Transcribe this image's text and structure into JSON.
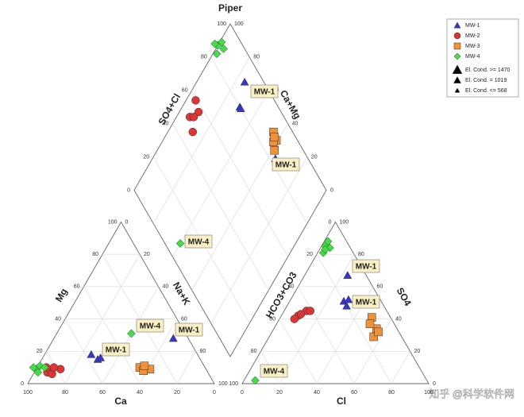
{
  "chart_data": {
    "type": "piper",
    "title": "Piper",
    "axes": {
      "cation": {
        "bottom": "Ca",
        "left": "Mg",
        "right": "Na+K"
      },
      "anion": {
        "bottom": "Cl",
        "left": "HCO3+CO3",
        "right": "SO4"
      },
      "diamond": {
        "left": "SO4+Cl",
        "right": "Ca+Mg"
      }
    },
    "ticks": [
      0,
      20,
      40,
      60,
      80,
      100
    ],
    "grid": true,
    "series": [
      {
        "name": "MW-1",
        "color": "#3636c8",
        "marker": "triangle",
        "cation": [
          [
            57,
            18
          ],
          [
            55,
            15
          ],
          [
            53,
            16
          ],
          [
            8,
            28
          ]
        ],
        "anion": [
          [
            23,
            67
          ],
          [
            29,
            51
          ],
          [
            32,
            48
          ],
          [
            31,
            52
          ]
        ]
      },
      {
        "name": "MW-2",
        "color": "#dc3535",
        "marker": "circle",
        "cation": [
          [
            86,
            7
          ],
          [
            84,
            6
          ],
          [
            78,
            9
          ],
          [
            81,
            10
          ],
          [
            85,
            10
          ]
        ],
        "anion": [
          [
            9,
            42
          ],
          [
            12,
            45
          ],
          [
            8,
            40
          ],
          [
            10,
            43
          ],
          [
            14,
            45
          ]
        ]
      },
      {
        "name": "MW-3",
        "color": "#f0913a",
        "marker": "square",
        "cation": [
          [
            35,
            10
          ],
          [
            32,
            9
          ],
          [
            30,
            9
          ],
          [
            34,
            8
          ],
          [
            32,
            11
          ]
        ],
        "anion": [
          [
            49,
            41
          ],
          [
            55,
            34
          ],
          [
            56,
            29
          ],
          [
            50,
            37
          ],
          [
            57,
            32
          ]
        ]
      },
      {
        "name": "MW-4",
        "color": "#44dd44",
        "marker": "diamond",
        "cation": [
          [
            91,
            9
          ],
          [
            88,
            11
          ],
          [
            91,
            7
          ],
          [
            86,
            10
          ],
          [
            92,
            10
          ],
          [
            29,
            31
          ]
        ],
        "anion": [
          [
            2,
            85
          ],
          [
            2,
            88
          ],
          [
            3,
            81
          ],
          [
            5,
            84
          ],
          [
            3,
            83
          ],
          [
            6,
            2
          ]
        ]
      }
    ],
    "size_legend": [
      "El. Cond. >= 1470",
      "El. Cond. = 1019",
      "El. Cond. <= 568"
    ],
    "annotations": [
      "MW-1",
      "MW-1",
      "MW-4",
      "MW-4",
      "MW-1",
      "MW-1",
      "MW-1",
      "MW-1",
      "MW-4"
    ],
    "watermark": "知乎 @科学软件网"
  }
}
